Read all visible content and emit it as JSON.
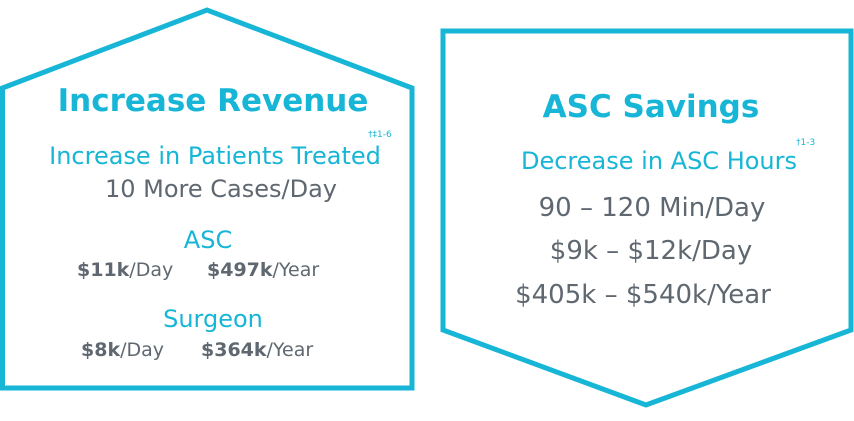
{
  "colors": {
    "accent": "#17b5d6",
    "text": "#5f6770",
    "background": "#ffffff"
  },
  "revenue": {
    "title": "Increase Revenue",
    "subtitle": "Increase in Patients Treated",
    "footnote": "†‡1-6",
    "cases": "10 More Cases/Day",
    "asc": {
      "heading": "ASC",
      "day_value": "$11k",
      "day_unit": "/Day",
      "year_value": "$497k",
      "year_unit": "/Year"
    },
    "surgeon": {
      "heading": "Surgeon",
      "day_value": "$8k",
      "day_unit": "/Day",
      "year_value": "$364k",
      "year_unit": "/Year"
    }
  },
  "savings": {
    "title": "ASC Savings",
    "subtitle": "Decrease in ASC Hours",
    "footnote": "†1-3",
    "lines": [
      "90 – 120 Min/Day",
      "$9k – $12k/Day",
      "$405k – $540k/Year"
    ]
  }
}
